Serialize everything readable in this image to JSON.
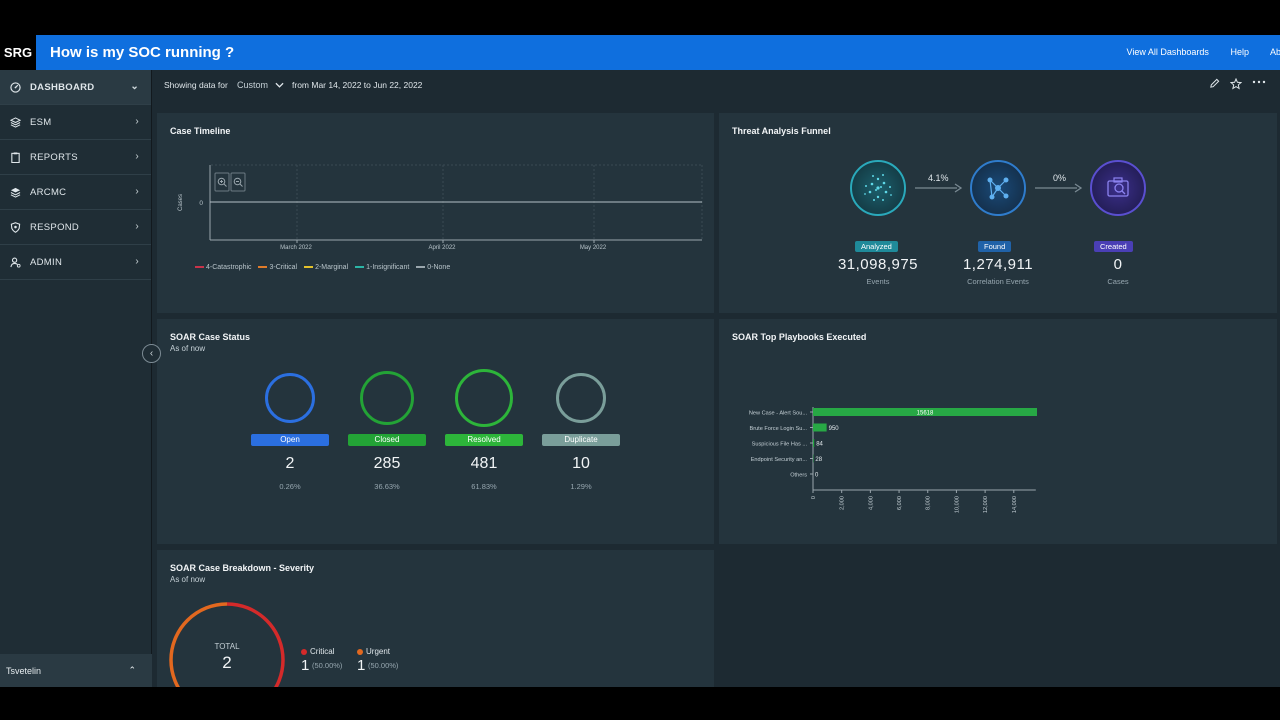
{
  "header": {
    "logo": "SRG",
    "title": "How is my SOC running ?",
    "links": [
      "View All Dashboards",
      "Help",
      "Abo"
    ]
  },
  "sidebar": {
    "items": [
      {
        "label": "DASHBOARD",
        "icon": "dashboard-icon",
        "chevron": "⌄"
      },
      {
        "label": "ESM",
        "icon": "layers-icon",
        "chevron": "›"
      },
      {
        "label": "REPORTS",
        "icon": "clipboard-icon",
        "chevron": "›"
      },
      {
        "label": "ARCMC",
        "icon": "stack-icon",
        "chevron": "›"
      },
      {
        "label": "RESPOND",
        "icon": "shield-icon",
        "chevron": "›"
      },
      {
        "label": "ADMIN",
        "icon": "user-gear-icon",
        "chevron": "›"
      }
    ],
    "user": "Tsvetelin",
    "user_chevron": "⌃",
    "collapse_glyph": "‹"
  },
  "filter": {
    "label": "Showing data for",
    "dropdown": "Custom",
    "range": "from Mar 14, 2022 to Jun 22, 2022"
  },
  "case_timeline": {
    "title": "Case Timeline",
    "chart_data": {
      "type": "line",
      "title": "Case Timeline",
      "ylabel": "Cases",
      "xlabel": "",
      "y_ticks": [
        "0"
      ],
      "x_ticks": [
        "March 2022",
        "April 2022",
        "May 2022"
      ],
      "series": [
        {
          "name": "4-Catastrophic",
          "color": "#c8334a",
          "values": []
        },
        {
          "name": "3-Critical",
          "color": "#e07b2a",
          "values": []
        },
        {
          "name": "2-Marginal",
          "color": "#e3c12b",
          "values": []
        },
        {
          "name": "1-Insignificant",
          "color": "#2bb5a6",
          "values": []
        },
        {
          "name": "0-None",
          "color": "#9aa6ad",
          "values": []
        }
      ]
    }
  },
  "funnel": {
    "title": "Threat Analysis Funnel",
    "stages": [
      {
        "badge": "Analyzed",
        "value": "31,098,975",
        "caption": "Events",
        "color": "#1f8a9a"
      },
      {
        "badge": "Found",
        "value": "1,274,911",
        "caption": "Correlation Events",
        "color": "#2062a8"
      },
      {
        "badge": "Created",
        "value": "0",
        "caption": "Cases",
        "color": "#4a3fb5"
      }
    ],
    "rates": [
      "4.1%",
      "0%"
    ]
  },
  "soar_status": {
    "title": "SOAR Case Status",
    "subtitle": "As of now",
    "items": [
      {
        "label": "Open",
        "value": "2",
        "pct": "0.26%",
        "color": "#2b6fe0"
      },
      {
        "label": "Closed",
        "value": "285",
        "pct": "36.63%",
        "color": "#23a336"
      },
      {
        "label": "Resolved",
        "value": "481",
        "pct": "61.83%",
        "color": "#2db53a"
      },
      {
        "label": "Duplicate",
        "value": "10",
        "pct": "1.29%",
        "color": "#7a9e9a"
      }
    ]
  },
  "playbooks": {
    "title": "SOAR Top Playbooks Executed",
    "chart_data": {
      "type": "bar",
      "orientation": "horizontal",
      "title": "SOAR Top Playbooks Executed",
      "categories": [
        "New Case - Alert Sou...",
        "Brute Force Login Su...",
        "Suspicious File Has ...",
        "Endpoint Security an...",
        "Others"
      ],
      "values": [
        15618,
        950,
        84,
        28,
        0
      ],
      "value_labels": [
        "15618",
        "950",
        "84",
        "28",
        "0"
      ],
      "xlim": [
        0,
        15618
      ],
      "x_ticks": [
        0,
        2000,
        4000,
        6000,
        8000,
        10000,
        12000,
        14000
      ],
      "x_tick_labels": [
        "0",
        "2,000",
        "4,000",
        "6,000",
        "8,000",
        "10,000",
        "12,000",
        "14,000"
      ],
      "color": "#27a845"
    }
  },
  "breakdown": {
    "title": "SOAR Case Breakdown - Severity",
    "subtitle": "As of now",
    "total_label": "TOTAL",
    "total": "2",
    "chart_data": {
      "type": "pie",
      "categories": [
        "Critical",
        "Urgent"
      ],
      "values": [
        1,
        1
      ],
      "colors": [
        "#d42a2a",
        "#e2681f"
      ]
    },
    "items": [
      {
        "label": "Critical",
        "value": "1",
        "pct": "(50.00%)",
        "color": "#d42a2a"
      },
      {
        "label": "Urgent",
        "value": "1",
        "pct": "(50.00%)",
        "color": "#e2681f"
      }
    ]
  }
}
